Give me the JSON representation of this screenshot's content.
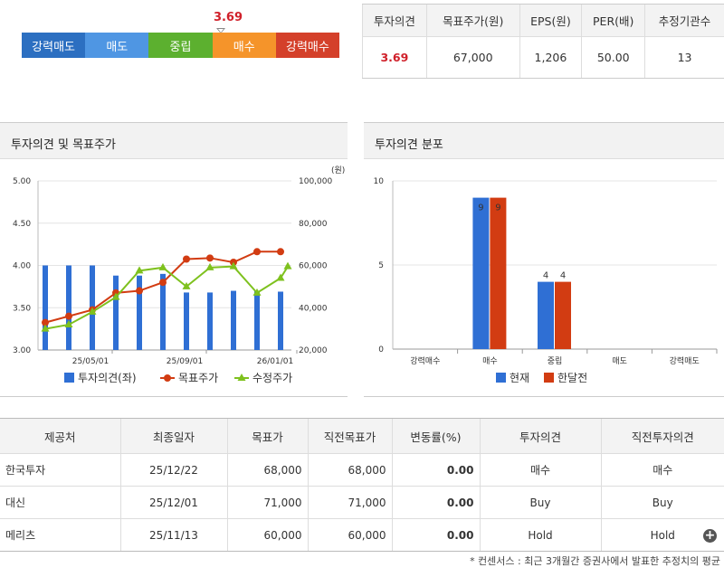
{
  "summary": {
    "score": "3.69",
    "scale": [
      {
        "label": "강력매도",
        "color": "#2c6fc1"
      },
      {
        "label": "매도",
        "color": "#4f96e3"
      },
      {
        "label": "중립",
        "color": "#5cb02f"
      },
      {
        "label": "매수",
        "color": "#f5942a"
      },
      {
        "label": "강력매수",
        "color": "#d4402a"
      }
    ],
    "headers": [
      "투자의견",
      "목표주가(원)",
      "EPS(원)",
      "PER(배)",
      "추정기관수"
    ],
    "values": [
      "3.69",
      "67,000",
      "1,206",
      "50.00",
      "13"
    ]
  },
  "left_panel": {
    "title": "투자의견 및 목표주가",
    "unit": "(원)",
    "legend": [
      "투자의견(좌)",
      "목표주가",
      "수정주가"
    ]
  },
  "right_panel": {
    "title": "투자의견 분포",
    "legend": [
      "현재",
      "한달전"
    ]
  },
  "chart_data": [
    {
      "type": "bar",
      "title": "투자의견 및 목표주가",
      "y_left_ticks": [
        "5.00",
        "4.50",
        "4.00",
        "3.50",
        "3.00"
      ],
      "y_left_range": [
        3.0,
        5.0
      ],
      "y_right_ticks": [
        "100,000",
        "80,000",
        "60,000",
        "40,000",
        "20,000"
      ],
      "y_right_range": [
        20000,
        100000
      ],
      "x_ticks": [
        "25/05/01",
        "25/09/01",
        "26/01/01"
      ],
      "series": [
        {
          "name": "투자의견(좌)",
          "kind": "bar",
          "color": "#2f6fd4",
          "values": [
            4.0,
            4.0,
            4.0,
            3.88,
            3.88,
            3.9,
            3.68,
            3.68,
            3.7,
            3.7,
            3.69
          ]
        },
        {
          "name": "목표주가",
          "kind": "line",
          "color": "#d23c12",
          "values": [
            33000,
            36000,
            39000,
            47000,
            48000,
            52000,
            63000,
            63500,
            61500,
            66500,
            66500
          ]
        },
        {
          "name": "수정주가",
          "kind": "line",
          "color": "#7ec11e",
          "values": [
            30000,
            32000,
            38000,
            45000,
            57500,
            59000,
            50000,
            59000,
            59500,
            47000,
            54000,
            59500
          ]
        }
      ]
    },
    {
      "type": "bar",
      "title": "투자의견 분포",
      "categories": [
        "강력매수",
        "매수",
        "중립",
        "매도",
        "강력매도"
      ],
      "y_ticks": [
        "10",
        "5",
        "0"
      ],
      "y_range": [
        0,
        10
      ],
      "series": [
        {
          "name": "현재",
          "color": "#2f6fd4",
          "values": [
            0,
            9,
            4,
            0,
            0
          ]
        },
        {
          "name": "한달전",
          "color": "#d23c12",
          "values": [
            0,
            9,
            4,
            0,
            0
          ]
        }
      ],
      "data_labels": [
        "9",
        "9",
        "4",
        "4"
      ]
    }
  ],
  "table": {
    "headers": [
      "제공처",
      "최종일자",
      "목표가",
      "직전목표가",
      "변동률(%)",
      "투자의견",
      "직전투자의견"
    ],
    "rows": [
      [
        "한국투자",
        "25/12/22",
        "68,000",
        "68,000",
        "0.00",
        "매수",
        "매수"
      ],
      [
        "대신",
        "25/12/01",
        "71,000",
        "71,000",
        "0.00",
        "Buy",
        "Buy"
      ],
      [
        "메리츠",
        "25/11/13",
        "60,000",
        "60,000",
        "0.00",
        "Hold",
        "Hold"
      ]
    ],
    "more_icon": "plus-circle-icon"
  },
  "footnote": "* 컨센서스 : 최근 3개월간 증권사에서 발표한 추정치의 평균"
}
